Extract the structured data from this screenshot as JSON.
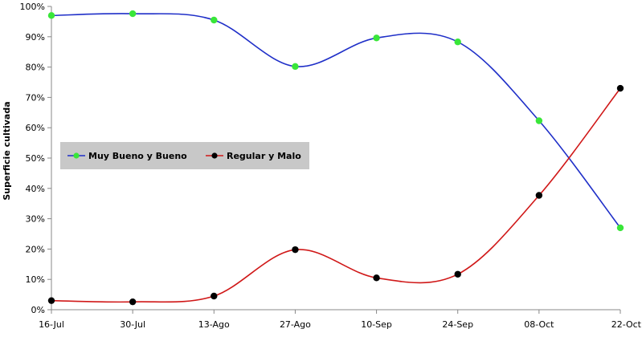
{
  "chart_data": {
    "type": "line",
    "title": "",
    "xlabel": "",
    "ylabel": "Superficie cultivada",
    "categories": [
      "16-Jul",
      "30-Jul",
      "13-Ago",
      "27-Ago",
      "10-Sep",
      "24-Sep",
      "08-Oct",
      "22-Oct"
    ],
    "yticks": [
      "0%",
      "10%",
      "20%",
      "30%",
      "40%",
      "50%",
      "60%",
      "70%",
      "80%",
      "90%",
      "100%"
    ],
    "ylim": [
      0,
      100
    ],
    "grid": false,
    "legend_position": "middle-left",
    "series": [
      {
        "name": "Muy Bueno y Bueno",
        "line_color": "#1f2fc8",
        "marker_color": "#39e639",
        "values": [
          97,
          97.6,
          95.5,
          80.2,
          89.6,
          88.3,
          62.3,
          27
        ]
      },
      {
        "name": "Regular y Malo",
        "line_color": "#d01818",
        "marker_color": "#000000",
        "values": [
          3,
          2.6,
          4.5,
          19.8,
          10.5,
          11.7,
          37.7,
          73
        ]
      }
    ]
  }
}
